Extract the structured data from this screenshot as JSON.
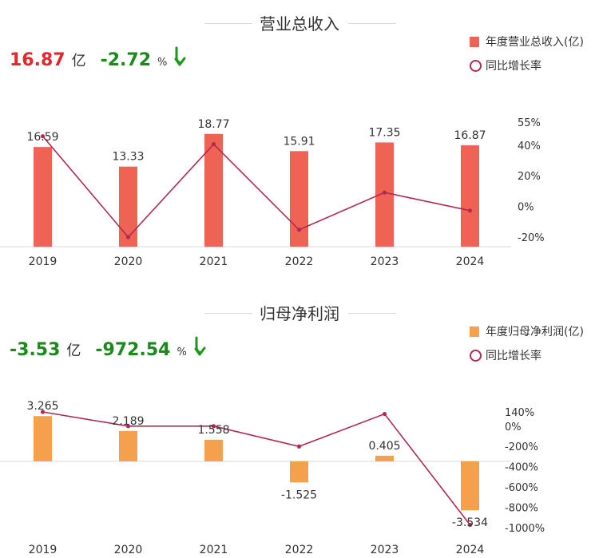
{
  "chart_data": [
    {
      "type": "bar",
      "title": "营业总收入",
      "categories": [
        "2019",
        "2020",
        "2021",
        "2022",
        "2023",
        "2024"
      ],
      "series": [
        {
          "name": "年度营业总收入(亿)",
          "type": "bar",
          "axis": "left",
          "values": [
            16.59,
            13.33,
            18.77,
            15.91,
            17.35,
            16.87
          ],
          "labels": [
            "16.59",
            "13.33",
            "18.77",
            "15.91",
            "17.35",
            "16.87"
          ]
        },
        {
          "name": "同比增长率",
          "type": "line",
          "axis": "right",
          "values": [
            45.8,
            -20.0,
            40.6,
            -15.2,
            9.1,
            -2.72
          ]
        }
      ],
      "y_left": {
        "min": 0,
        "max": 21
      },
      "y_right": {
        "min": -20,
        "max": 55,
        "ticks": [
          55,
          40,
          20,
          0,
          -20
        ],
        "tick_labels": [
          "55%",
          "40%",
          "20%",
          "0%",
          "-20%"
        ]
      },
      "legend_position": "top-right",
      "kpi": {
        "value": "16.87",
        "unit": "亿",
        "change": "-2.72",
        "pct": "%",
        "direction": "down"
      }
    },
    {
      "type": "bar",
      "title": "归母净利润",
      "categories": [
        "2019",
        "2020",
        "2021",
        "2022",
        "2023",
        "2024"
      ],
      "series": [
        {
          "name": "年度归母净利润(亿)",
          "type": "bar",
          "axis": "left",
          "values": [
            3.265,
            2.189,
            1.558,
            -1.525,
            0.405,
            -3.534
          ],
          "labels": [
            "3.265",
            "2.189",
            "1.558",
            "-1.525",
            "0.405",
            "-3.534"
          ]
        },
        {
          "name": "同比增长率",
          "type": "line",
          "axis": "right",
          "values": [
            140,
            0,
            0,
            -200,
            120,
            -972.54
          ]
        }
      ],
      "y_left": {
        "min": -4.5,
        "max": 4.2
      },
      "y_right": {
        "min": -1000,
        "max": 140,
        "ticks": [
          140,
          0,
          -200,
          -400,
          -600,
          -800,
          -1000
        ],
        "tick_labels": [
          "140%",
          "0%",
          "-200%",
          "-400%",
          "-600%",
          "-800%",
          "-1000%"
        ]
      },
      "legend_position": "top-right",
      "kpi": {
        "value": "-3.53",
        "unit": "亿",
        "change": "-972.54",
        "pct": "%",
        "direction": "down"
      }
    }
  ],
  "colors": {
    "revenue_bar": "#ef6355",
    "profit_bar": "#f5a04c",
    "growth_line": "#b22a52",
    "positive": "#e5262a",
    "negative": "#1a8a1a",
    "arrow_down": "#1a9a1a",
    "axis": "#d9d9d9"
  }
}
